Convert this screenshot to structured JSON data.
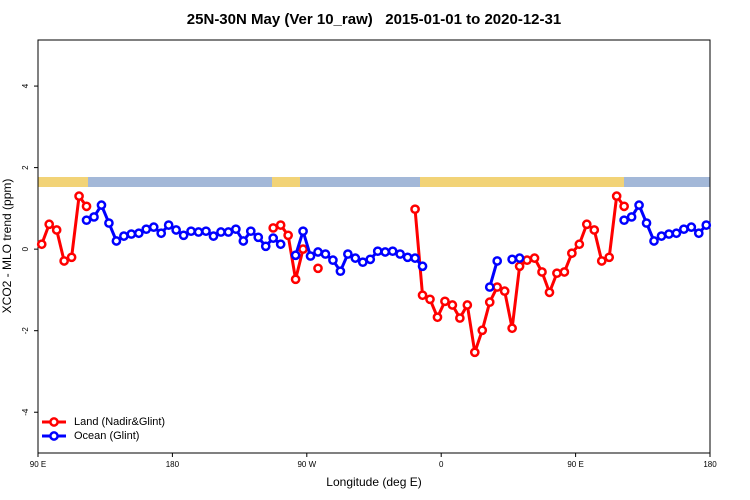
{
  "chart_data": {
    "type": "line",
    "title": "25N-30N May (Ver 10_raw)   2015-01-01 to 2020-12-31",
    "x_label": "Longitude (deg E)",
    "y_label": "XCO2 - MLO trend (ppm)",
    "xlim": [
      90,
      540
    ],
    "ylim": [
      -5,
      5.13
    ],
    "xticks": [
      {
        "value": 90,
        "label": "90 E"
      },
      180,
      {
        "value": 270,
        "label": "90 W"
      },
      {
        "value": 360,
        "label": "0"
      },
      {
        "value": 450,
        "label": "90 E"
      },
      {
        "value": 540,
        "label": "180"
      }
    ],
    "yticks": [
      -4,
      -2,
      0,
      2,
      4
    ],
    "legend": "bottom-left",
    "series": [
      {
        "name": "Land (Nadir&Glint)",
        "color": "#ff0000",
        "x": [
          92.5,
          97.5,
          102.5,
          107.5,
          112.5,
          117.5,
          122.5,
          127.5,
          247.5,
          252.5,
          257.5,
          262.5,
          267.5,
          272.5,
          277.5,
          282.5,
          342.5,
          347.5,
          352.5,
          357.5,
          362.5,
          367.5,
          372.5,
          377.5,
          382.5,
          387.5,
          392.5,
          397.5,
          402.5,
          407.5,
          412.5,
          417.5,
          422.5,
          427.5,
          432.5,
          437.5,
          442.5,
          447.5,
          452.5,
          457.5,
          462.5,
          467.5,
          472.5,
          477.5,
          482.5
        ],
        "values": [
          0.12,
          0.61,
          0.47,
          -0.29,
          -0.2,
          1.3,
          1.05,
          null,
          0.52,
          0.59,
          0.34,
          -0.74,
          0.0,
          null,
          -0.47,
          null,
          0.98,
          -1.13,
          -1.23,
          -1.67,
          -1.28,
          -1.37,
          -1.69,
          -1.37,
          -2.53,
          -1.99,
          -1.3,
          -0.93,
          -1.03,
          -1.94,
          -0.42,
          -0.27,
          -0.22,
          -0.56,
          -1.06,
          -0.59,
          -0.56,
          -0.1,
          0.12,
          0.61,
          0.47,
          -0.29,
          -0.2,
          1.3,
          1.05
        ]
      },
      {
        "name": "Ocean (Glint)",
        "color": "#0000ff",
        "x": [
          122.5,
          127.5,
          132.5,
          137.5,
          142.5,
          147.5,
          152.5,
          157.5,
          162.5,
          167.5,
          172.5,
          177.5,
          182.5,
          187.5,
          192.5,
          197.5,
          202.5,
          207.5,
          212.5,
          217.5,
          222.5,
          227.5,
          232.5,
          237.5,
          242.5,
          247.5,
          252.5,
          257.5,
          262.5,
          267.5,
          272.5,
          277.5,
          282.5,
          287.5,
          292.5,
          297.5,
          302.5,
          307.5,
          312.5,
          317.5,
          322.5,
          327.5,
          332.5,
          337.5,
          342.5,
          347.5,
          352.5,
          392.5,
          397.5,
          402.5,
          407.5,
          412.5,
          417.5,
          482.5,
          487.5,
          492.5,
          497.5,
          502.5,
          507.5,
          512.5,
          517.5,
          522.5,
          527.5,
          532.5,
          537.5
        ],
        "values": [
          0.71,
          0.79,
          1.08,
          0.64,
          0.2,
          0.32,
          0.37,
          0.39,
          0.49,
          0.54,
          0.39,
          0.59,
          0.47,
          0.34,
          0.44,
          0.42,
          0.44,
          0.32,
          0.42,
          0.42,
          0.49,
          0.2,
          0.44,
          0.29,
          0.07,
          0.27,
          0.12,
          null,
          -0.15,
          0.44,
          -0.17,
          -0.07,
          -0.12,
          -0.27,
          -0.54,
          -0.12,
          -0.22,
          -0.32,
          -0.25,
          -0.05,
          -0.07,
          -0.05,
          -0.12,
          -0.2,
          -0.22,
          -0.42,
          null,
          -0.93,
          -0.29,
          null,
          -0.25,
          -0.22,
          null,
          0.71,
          0.79,
          1.08,
          0.64,
          0.2,
          0.32,
          0.37,
          0.39,
          0.49,
          0.54,
          0.39,
          0.59
        ]
      }
    ]
  }
}
